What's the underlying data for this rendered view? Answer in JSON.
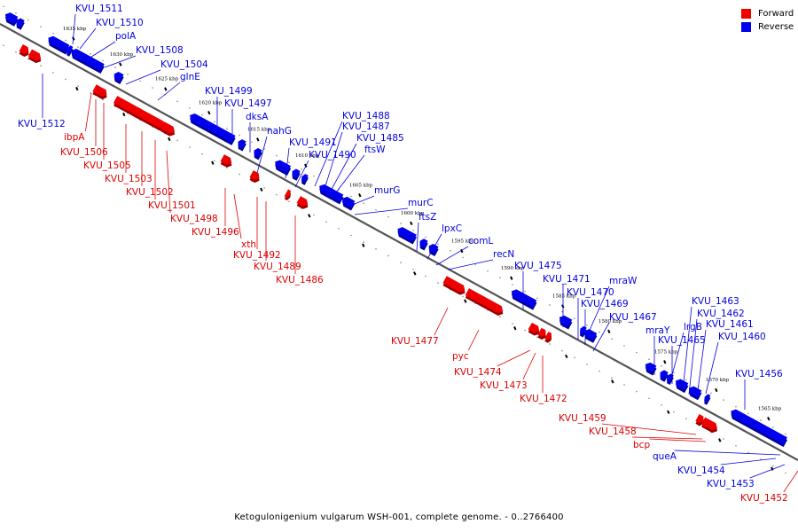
{
  "caption": "Ketogulonigenium vulgarum WSH-001, complete genome. - 0..2766400",
  "legend": [
    {
      "label": "Forward",
      "color": "#ee0000"
    },
    {
      "label": "Reverse",
      "color": "#0000ee"
    }
  ],
  "colors": {
    "forward": "#ee0000",
    "reverse": "#0000ee",
    "forward_line": "#dd0000",
    "reverse_line": "#0000dd",
    "backbone": "#555555"
  },
  "ticks": [
    "1635 kbp",
    "1630 kbp",
    "1625 kbp",
    "1620 kbp",
    "1615 kbp",
    "1610 kbp",
    "1605 kbp",
    "1600 kbp",
    "1595 kbp",
    "1590 kbp",
    "1585 kbp",
    "1580 kbp",
    "1575 kbp",
    "1570 kbp",
    "1565 kbp"
  ],
  "reverse_labels": [
    "KVU_1511",
    "KVU_1510",
    "polA",
    "KVU_1508",
    "KVU_1504",
    "KVU_1512",
    "glnE",
    "KVU_1499",
    "KVU_1497",
    "dksA",
    "nahG",
    "KVU_1488",
    "KVU_1487",
    "KVU_1491",
    "KVU_1485",
    "KVU_1490",
    "ftsW",
    "murG",
    "murC",
    "ftsZ",
    "lpxC",
    "comL",
    "recN",
    "KVU_1475",
    "KVU_1471",
    "mraW",
    "KVU_1470",
    "KVU_1469",
    "KVU_1467",
    "mraY",
    "lrgB",
    "KVU_1465",
    "KVU_1463",
    "KVU_1462",
    "KVU_1461",
    "KVU_1460",
    "KVU_1456",
    "queA",
    "KVU_1454",
    "KVU_1453"
  ],
  "forward_labels": [
    "ibpA",
    "KVU_1506",
    "KVU_1505",
    "KVU_1503",
    "KVU_1502",
    "KVU_1501",
    "KVU_1498",
    "KVU_1496",
    "xth",
    "KVU_1492",
    "KVU_1489",
    "KVU_1486",
    "KVU_1477",
    "pyc",
    "KVU_1474",
    "KVU_1473",
    "KVU_1472",
    "KVU_1459",
    "KVU_1458",
    "bcp",
    "KVU_1452"
  ]
}
